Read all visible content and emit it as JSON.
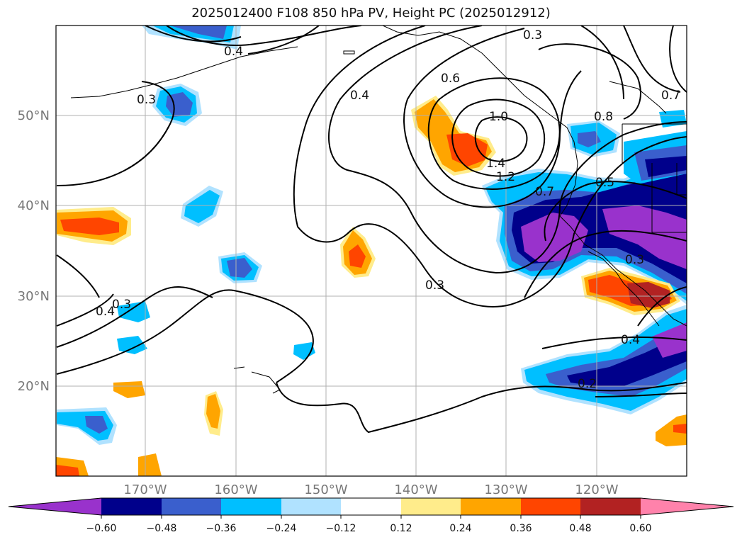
{
  "title": "2025012400 F108 850 hPa PV, Height PC (2025012912)",
  "map": {
    "lat_labels": [
      "50°N",
      "40°N",
      "30°N",
      "20°N"
    ],
    "lon_labels": [
      "170°W",
      "160°W",
      "150°W",
      "140°W",
      "130°W",
      "120°W"
    ],
    "gridline_color": "#b0b0b0",
    "label_color": "#777777"
  },
  "contour_labels": [
    "0.3",
    "0.4",
    "0.4",
    "0.3",
    "0.6",
    "1.0",
    "1.4",
    "1.2",
    "0.7",
    "0.5",
    "0.8",
    "0.7",
    "0.3",
    "0.4",
    "0.3",
    "0.4",
    "0.2",
    "0.3"
  ],
  "colorbar": {
    "ticks": [
      "−0.60",
      "−0.48",
      "−0.36",
      "−0.24",
      "−0.12",
      "0.12",
      "0.24",
      "0.36",
      "0.48",
      "0.60"
    ],
    "colors": [
      "#9932cc",
      "#00008b",
      "#3a5fcd",
      "#00bfff",
      "#b0e2ff",
      "#ffffff",
      "#ffec8b",
      "#ffa500",
      "#ff4500",
      "#b22222",
      "#ff82ab"
    ]
  }
}
